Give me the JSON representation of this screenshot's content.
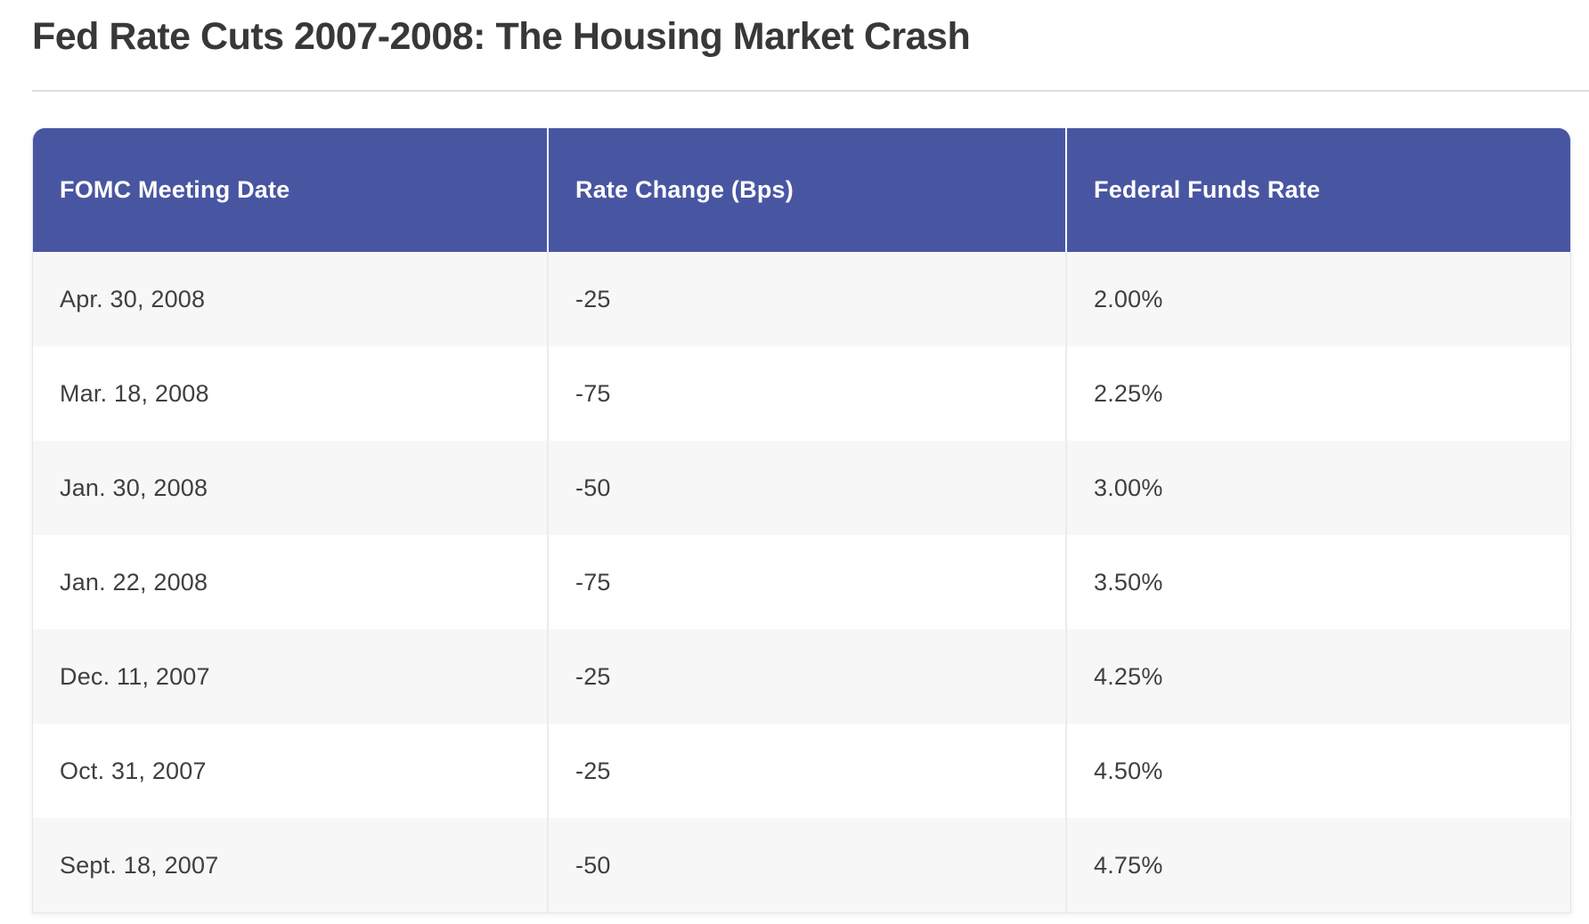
{
  "page": {
    "title": "Fed Rate Cuts 2007-2008: The Housing Market Crash"
  },
  "table": {
    "columns": [
      "FOMC Meeting Date",
      "Rate Change (Bps)",
      "Federal Funds Rate"
    ],
    "rows": [
      {
        "date": "Apr. 30, 2008",
        "change": "-25",
        "rate": "2.00%"
      },
      {
        "date": "Mar. 18, 2008",
        "change": "-75",
        "rate": "2.25%"
      },
      {
        "date": "Jan. 30, 2008",
        "change": "-50",
        "rate": "3.00%"
      },
      {
        "date": "Jan. 22, 2008",
        "change": "-75",
        "rate": "3.50%"
      },
      {
        "date": "Dec. 11, 2007",
        "change": "-25",
        "rate": "4.25%"
      },
      {
        "date": "Oct. 31, 2007",
        "change": "-25",
        "rate": "4.50%"
      },
      {
        "date": "Sept. 18, 2007",
        "change": "-50",
        "rate": "4.75%"
      }
    ]
  },
  "chart_data": {
    "type": "table",
    "title": "Fed Rate Cuts 2007-2008: The Housing Market Crash",
    "columns": [
      "FOMC Meeting Date",
      "Rate Change (Bps)",
      "Federal Funds Rate"
    ],
    "rows": [
      [
        "Apr. 30, 2008",
        -25,
        "2.00%"
      ],
      [
        "Mar. 18, 2008",
        -75,
        "2.25%"
      ],
      [
        "Jan. 30, 2008",
        -50,
        "3.00%"
      ],
      [
        "Jan. 22, 2008",
        -75,
        "3.50%"
      ],
      [
        "Dec. 11, 2007",
        -25,
        "4.25%"
      ],
      [
        "Oct. 31, 2007",
        -25,
        "4.50%"
      ],
      [
        "Sept. 18, 2007",
        -50,
        "4.75%"
      ]
    ]
  },
  "colors": {
    "header_bg": "#4856a2",
    "header_text": "#ffffff",
    "row_alt_bg": "#f7f7f8",
    "row_bg": "#ffffff",
    "body_text": "#3f3f3f",
    "title_text": "#383838",
    "title_divider": "#dedede",
    "column_divider": "#e8ebf3"
  }
}
